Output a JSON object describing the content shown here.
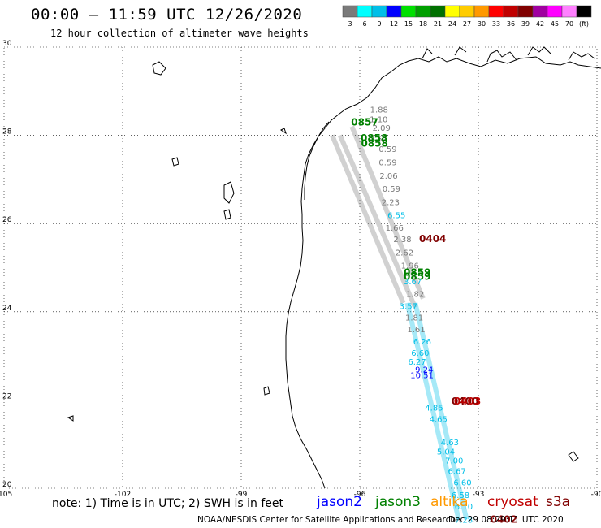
{
  "title": "00:00 – 11:59 UTC 12/26/2020",
  "subtitle": "12 hour collection of altimeter wave heights",
  "colorbar": {
    "labels": [
      "3",
      "6",
      "9",
      "12",
      "15",
      "18",
      "21",
      "24",
      "27",
      "30",
      "33",
      "36",
      "39",
      "42",
      "45",
      "70",
      "(ft)"
    ],
    "colors": [
      "#7a7a7a",
      "#00ffff",
      "#00bfe8",
      "#0000ff",
      "#00e000",
      "#00a000",
      "#007000",
      "#ffff00",
      "#ffcc00",
      "#ff9900",
      "#ff0000",
      "#c00000",
      "#800000",
      "#a000a0",
      "#ff00ff",
      "#ff80ff",
      "#000000"
    ]
  },
  "map": {
    "lon_labels": [
      "-105",
      "-102",
      "-99",
      "-96",
      "-93",
      "-90"
    ],
    "lat_labels": [
      "30",
      "28",
      "26",
      "24",
      "22",
      "20"
    ]
  },
  "track_labels": [
    {
      "text": "1.88",
      "lon": -95.74,
      "lat": 28.52,
      "color": "#7a7a7a"
    },
    {
      "text": "1.10",
      "lon": -95.75,
      "lat": 28.3,
      "color": "#7a7a7a"
    },
    {
      "text": "0857",
      "lon": -96.22,
      "lat": 28.22,
      "color": "#008000"
    },
    {
      "text": "2.09",
      "lon": -95.68,
      "lat": 28.1,
      "color": "#7a7a7a"
    },
    {
      "text": "2.57",
      "lon": -95.76,
      "lat": 27.85,
      "color": "#7a7a7a"
    },
    {
      "text": "0858",
      "lon": -95.98,
      "lat": 27.86,
      "color": "#008000"
    },
    {
      "text": "0858",
      "lon": -95.97,
      "lat": 27.74,
      "color": "#008000"
    },
    {
      "text": "0.59",
      "lon": -95.52,
      "lat": 27.62,
      "color": "#7a7a7a"
    },
    {
      "text": "0.59",
      "lon": -95.52,
      "lat": 27.32,
      "color": "#7a7a7a"
    },
    {
      "text": "2.06",
      "lon": -95.5,
      "lat": 27.02,
      "color": "#7a7a7a"
    },
    {
      "text": "0.59",
      "lon": -95.43,
      "lat": 26.72,
      "color": "#7a7a7a"
    },
    {
      "text": "2.23",
      "lon": -95.45,
      "lat": 26.42,
      "color": "#7a7a7a"
    },
    {
      "text": "6.55",
      "lon": -95.3,
      "lat": 26.12,
      "color": "#00bfe8"
    },
    {
      "text": "1.66",
      "lon": -95.35,
      "lat": 25.84,
      "color": "#7a7a7a"
    },
    {
      "text": "2.38",
      "lon": -95.15,
      "lat": 25.58,
      "color": "#7a7a7a"
    },
    {
      "text": "0404",
      "lon": -94.5,
      "lat": 25.58,
      "color": "#800000"
    },
    {
      "text": "2.62",
      "lon": -95.1,
      "lat": 25.28,
      "color": "#7a7a7a"
    },
    {
      "text": "1.96",
      "lon": -94.96,
      "lat": 24.98,
      "color": "#7a7a7a"
    },
    {
      "text": "0859",
      "lon": -94.89,
      "lat": 24.82,
      "color": "#008000"
    },
    {
      "text": "0859",
      "lon": -94.89,
      "lat": 24.72,
      "color": "#008000"
    },
    {
      "text": "3.67",
      "lon": -94.89,
      "lat": 24.62,
      "color": "#00bfe8"
    },
    {
      "text": "1.82",
      "lon": -94.83,
      "lat": 24.34,
      "color": "#7a7a7a"
    },
    {
      "text": "3.57",
      "lon": -95.0,
      "lat": 24.06,
      "color": "#00bfe8"
    },
    {
      "text": "1.81",
      "lon": -94.85,
      "lat": 23.8,
      "color": "#7a7a7a"
    },
    {
      "text": "1.61",
      "lon": -94.8,
      "lat": 23.54,
      "color": "#7a7a7a"
    },
    {
      "text": "6.26",
      "lon": -94.65,
      "lat": 23.26,
      "color": "#00bfe8"
    },
    {
      "text": "6.60",
      "lon": -94.7,
      "lat": 23.0,
      "color": "#00bfe8"
    },
    {
      "text": "6.27",
      "lon": -94.78,
      "lat": 22.8,
      "color": "#00bfe8"
    },
    {
      "text": "9.24",
      "lon": -94.6,
      "lat": 22.62,
      "color": "#0000ff"
    },
    {
      "text": "10.51",
      "lon": -94.72,
      "lat": 22.5,
      "color": "#0000ff"
    },
    {
      "text": "0400",
      "lon": -93.68,
      "lat": 21.9,
      "color": "#800000"
    },
    {
      "text": "0403",
      "lon": -93.62,
      "lat": 21.9,
      "color": "#c00000"
    },
    {
      "text": "4.85",
      "lon": -94.35,
      "lat": 21.76,
      "color": "#00bfe8"
    },
    {
      "text": "4.65",
      "lon": -94.24,
      "lat": 21.5,
      "color": "#00bfe8"
    },
    {
      "text": "4.63",
      "lon": -93.95,
      "lat": 20.98,
      "color": "#00bfe8"
    },
    {
      "text": "5.04",
      "lon": -94.05,
      "lat": 20.76,
      "color": "#00bfe8"
    },
    {
      "text": "7.00",
      "lon": -93.84,
      "lat": 20.56,
      "color": "#00bfe8"
    },
    {
      "text": "6.67",
      "lon": -93.77,
      "lat": 20.32,
      "color": "#00bfe8"
    },
    {
      "text": "6.60",
      "lon": -93.63,
      "lat": 20.06,
      "color": "#00bfe8"
    },
    {
      "text": "6.58",
      "lon": -93.68,
      "lat": 19.78,
      "color": "#00bfe8"
    },
    {
      "text": "6.10",
      "lon": -93.6,
      "lat": 19.52,
      "color": "#00bfe8"
    },
    {
      "text": "7.28",
      "lon": -93.6,
      "lat": 19.22,
      "color": "#00bfe8"
    },
    {
      "text": "0402",
      "lon": -92.7,
      "lat": 19.22,
      "color": "#800000"
    }
  ],
  "note": "note:  1) Time is in UTC;  2) SWH is in feet",
  "missions": [
    {
      "name": "jason2",
      "color": "#0000ff"
    },
    {
      "name": "jason3",
      "color": "#008000"
    },
    {
      "name": "altika",
      "color": "#ff9900"
    },
    {
      "name": "cryosat",
      "color": "#c00000"
    },
    {
      "name": "s3a",
      "color": "#800000"
    }
  ],
  "credit": "NOAA/NESDIS Center for Satellite Applications and Research",
  "timestamp": "Dec 29 08:29:11 UTC 2020"
}
